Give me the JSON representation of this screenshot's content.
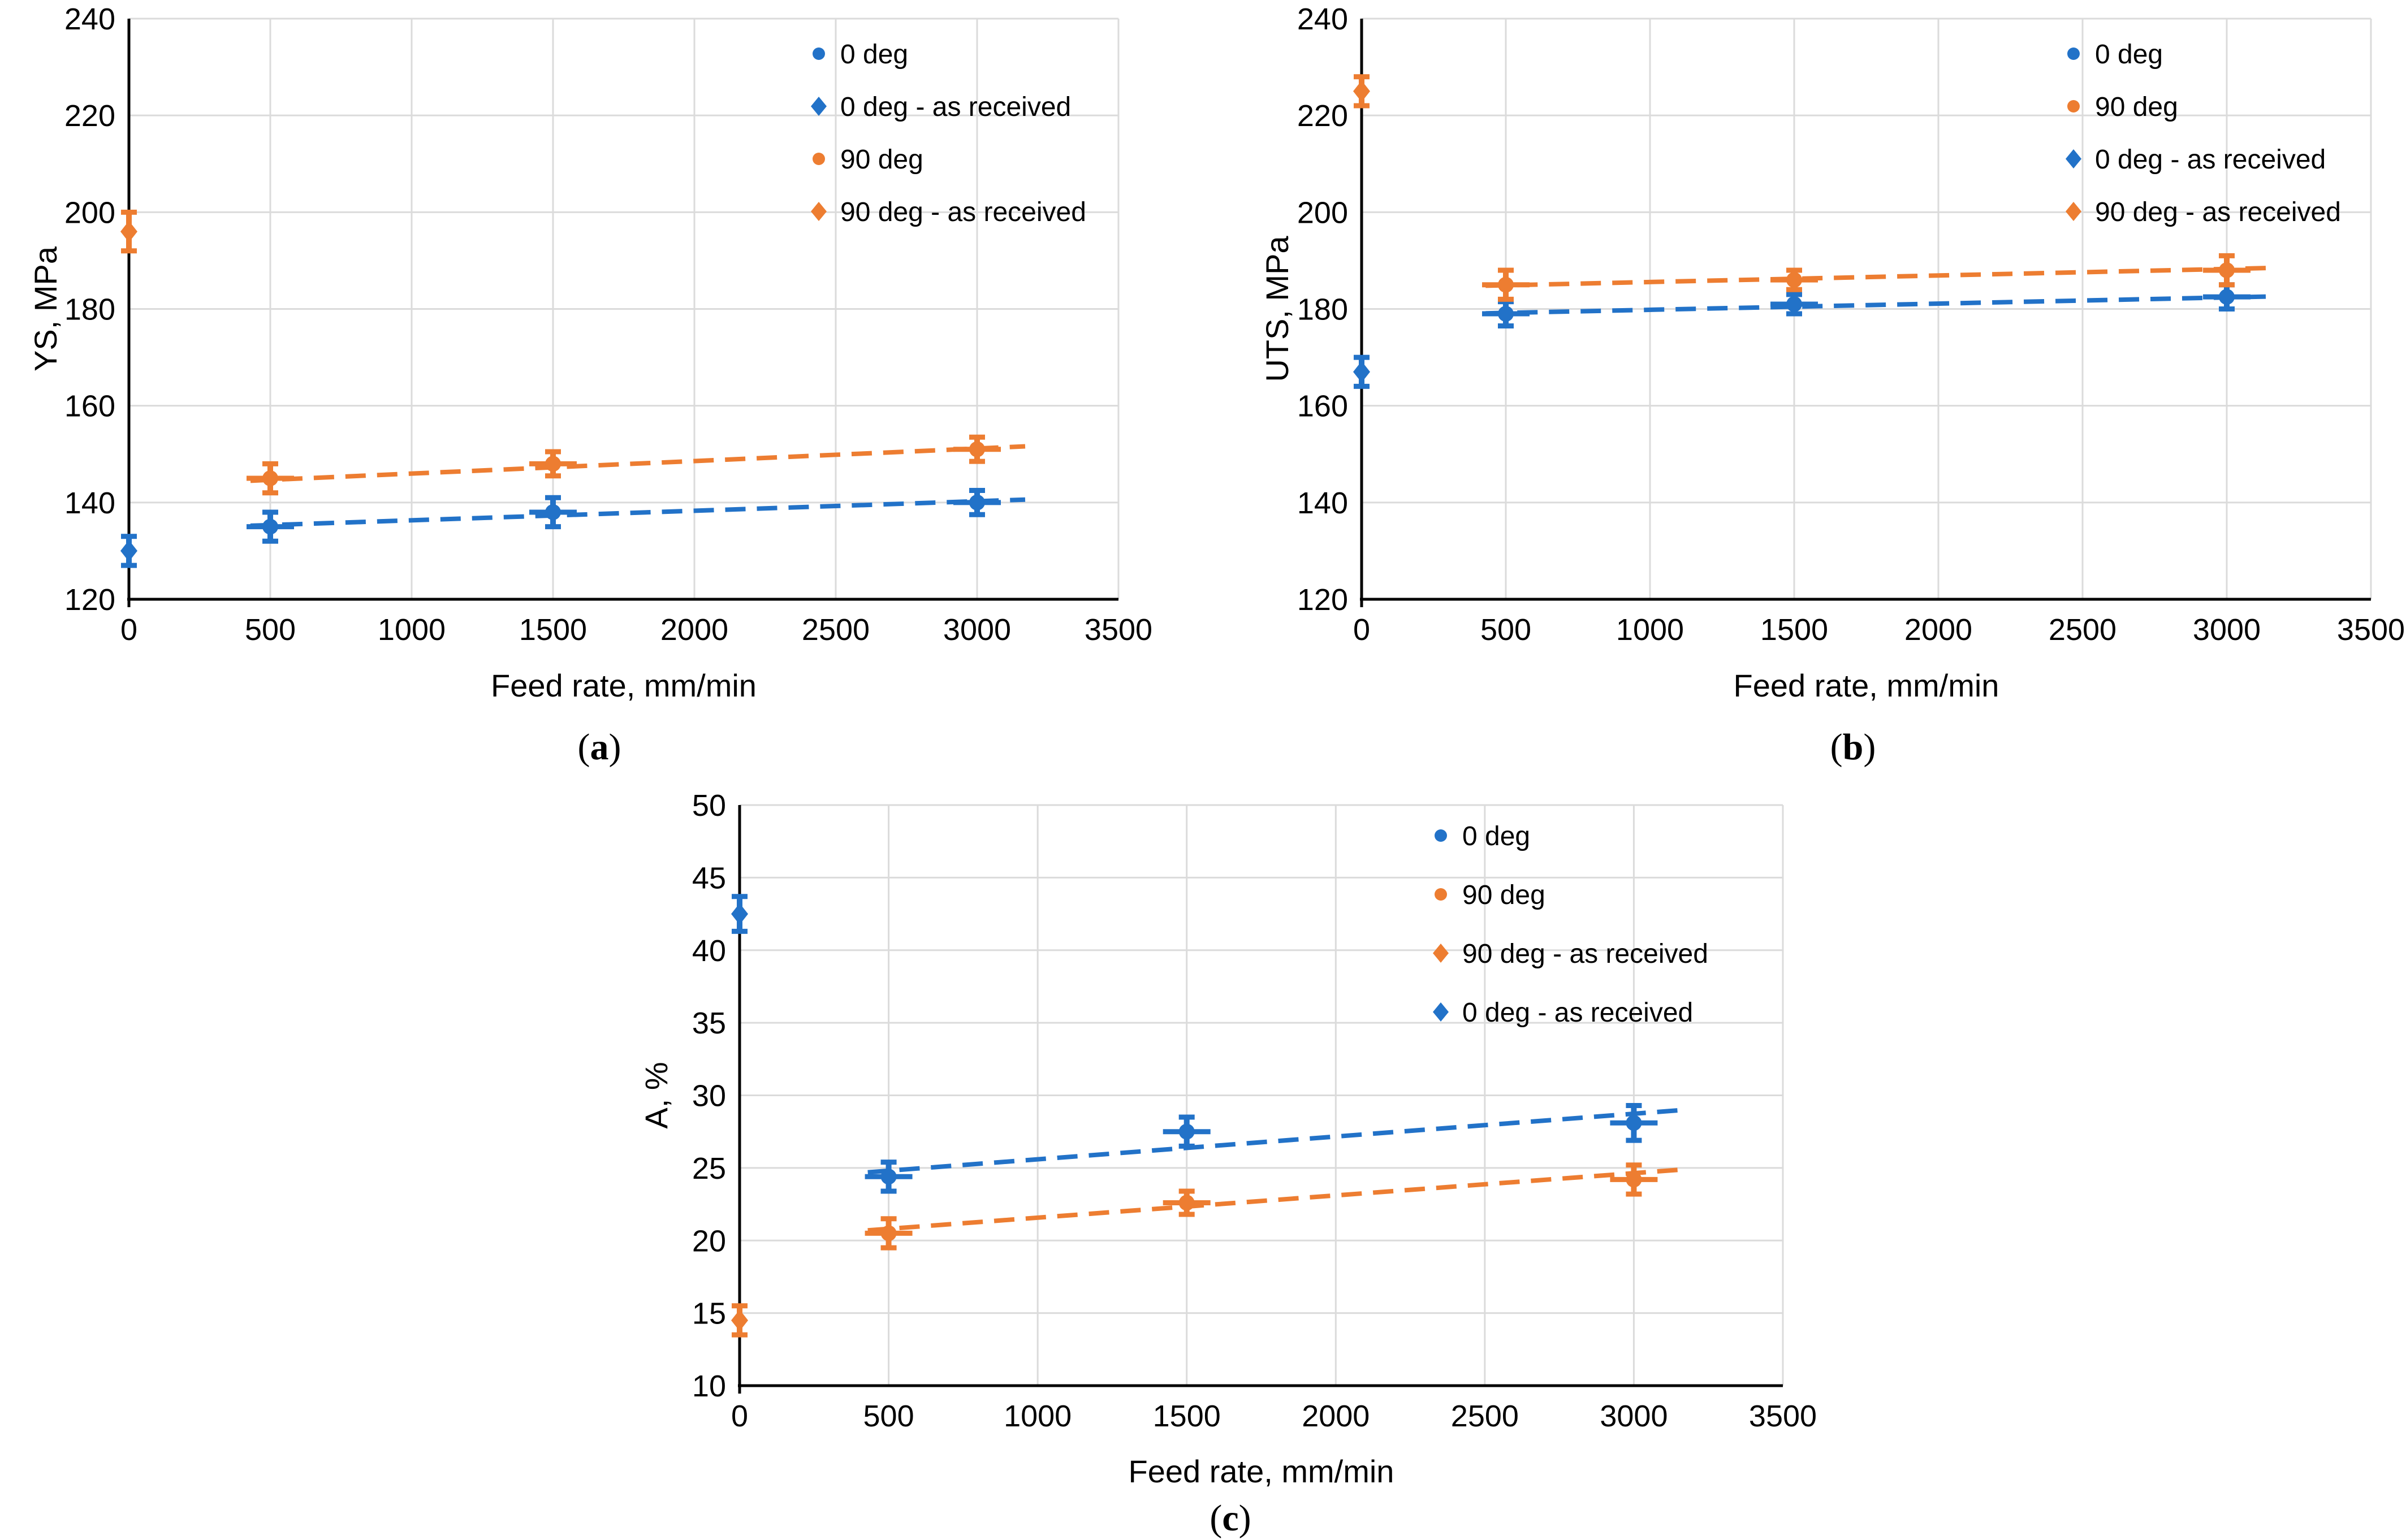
{
  "figure": {
    "background": "#ffffff",
    "captions": {
      "a": {
        "open": "(",
        "letter": "a",
        "close": ")"
      },
      "b": {
        "open": "(",
        "letter": "b",
        "close": ")"
      },
      "c": {
        "open": "(",
        "letter": "c",
        "close": ")"
      }
    }
  },
  "colors": {
    "blue": "#2272C8",
    "orange": "#ED7D31",
    "gridline": "#DBDBDB",
    "axis": "#000000",
    "text": "#000000"
  },
  "chart_data": [
    {
      "id": "a",
      "type": "scatter",
      "title": "",
      "xlabel": "Feed rate,  mm/min",
      "ylabel": "YS,  MPa",
      "xlim": [
        0,
        3500
      ],
      "ylim": [
        120,
        240
      ],
      "xticks": [
        0,
        500,
        1000,
        1500,
        2000,
        2500,
        3000,
        3500
      ],
      "yticks": [
        120,
        140,
        160,
        180,
        200,
        220,
        240
      ],
      "grid": true,
      "legend_position": "top-right-inside",
      "series": [
        {
          "name": "0 deg",
          "color": "blue",
          "marker": "circle",
          "points": [
            {
              "x": 500,
              "y": 135,
              "err": 3
            },
            {
              "x": 1500,
              "y": 138,
              "err": 3
            },
            {
              "x": 3000,
              "y": 140,
              "err": 2.5
            }
          ]
        },
        {
          "name": "0 deg - as received",
          "color": "blue",
          "marker": "diamond",
          "points": [
            {
              "x": 0,
              "y": 130,
              "err": 3
            }
          ]
        },
        {
          "name": "90 deg",
          "color": "orange",
          "marker": "circle",
          "points": [
            {
              "x": 500,
              "y": 145,
              "err": 3
            },
            {
              "x": 1500,
              "y": 148,
              "err": 2.5
            },
            {
              "x": 3000,
              "y": 151,
              "err": 2.5
            }
          ]
        },
        {
          "name": "90 deg - as received",
          "color": "orange",
          "marker": "diamond",
          "points": [
            {
              "x": 0,
              "y": 196,
              "err": 4
            }
          ]
        }
      ],
      "trendlines": [
        {
          "series": "0 deg",
          "color": "blue",
          "x1": 430,
          "y1": 135.2,
          "x2": 3170,
          "y2": 140.6
        },
        {
          "series": "90 deg",
          "color": "orange",
          "x1": 430,
          "y1": 144.5,
          "x2": 3170,
          "y2": 151.6
        }
      ],
      "legend": [
        {
          "label": "0 deg",
          "marker": "circle",
          "color": "blue"
        },
        {
          "label": "0 deg - as received",
          "marker": "diamond",
          "color": "blue"
        },
        {
          "label": "90 deg",
          "marker": "circle",
          "color": "orange"
        },
        {
          "label": "90 deg - as received",
          "marker": "diamond",
          "color": "orange"
        }
      ]
    },
    {
      "id": "b",
      "type": "scatter",
      "title": "",
      "xlabel": "Feed rate,  mm/min",
      "ylabel": "UTS, MPa",
      "xlim": [
        0,
        3500
      ],
      "ylim": [
        120,
        240
      ],
      "xticks": [
        0,
        500,
        1000,
        1500,
        2000,
        2500,
        3000,
        3500
      ],
      "yticks": [
        120,
        140,
        160,
        180,
        200,
        220,
        240
      ],
      "grid": true,
      "legend_position": "top-right-inside",
      "series": [
        {
          "name": "0 deg",
          "color": "blue",
          "marker": "circle",
          "points": [
            {
              "x": 500,
              "y": 179,
              "err": 2.5
            },
            {
              "x": 1500,
              "y": 181,
              "err": 2
            },
            {
              "x": 3000,
              "y": 182.5,
              "err": 2.5
            }
          ]
        },
        {
          "name": "90 deg",
          "color": "orange",
          "marker": "circle",
          "points": [
            {
              "x": 500,
              "y": 185,
              "err": 3
            },
            {
              "x": 1500,
              "y": 186,
              "err": 2
            },
            {
              "x": 3000,
              "y": 188,
              "err": 3
            }
          ]
        },
        {
          "name": "0 deg - as received",
          "color": "blue",
          "marker": "diamond",
          "points": [
            {
              "x": 0,
              "y": 167,
              "err": 3
            }
          ]
        },
        {
          "name": "90 deg - as received",
          "color": "orange",
          "marker": "diamond",
          "points": [
            {
              "x": 0,
              "y": 225,
              "err": 3
            }
          ]
        }
      ],
      "trendlines": [
        {
          "series": "0 deg",
          "color": "blue",
          "x1": 430,
          "y1": 179.1,
          "x2": 3170,
          "y2": 182.6
        },
        {
          "series": "90 deg",
          "color": "orange",
          "x1": 430,
          "y1": 184.8,
          "x2": 3170,
          "y2": 188.5
        }
      ],
      "legend": [
        {
          "label": "0 deg",
          "marker": "circle",
          "color": "blue"
        },
        {
          "label": "90 deg",
          "marker": "circle",
          "color": "orange"
        },
        {
          "label": "0 deg - as received",
          "marker": "diamond",
          "color": "blue"
        },
        {
          "label": "90 deg - as received",
          "marker": "diamond",
          "color": "orange"
        }
      ]
    },
    {
      "id": "c",
      "type": "scatter",
      "title": "",
      "xlabel": "Feed rate,  mm/min",
      "ylabel": "A, %",
      "xlim": [
        0,
        3500
      ],
      "ylim": [
        10,
        50
      ],
      "xticks": [
        0,
        500,
        1000,
        1500,
        2000,
        2500,
        3000,
        3500
      ],
      "yticks": [
        10,
        15,
        20,
        25,
        30,
        35,
        40,
        45,
        50
      ],
      "grid": true,
      "legend_position": "top-right-inside",
      "series": [
        {
          "name": "0 deg",
          "color": "blue",
          "marker": "circle",
          "points": [
            {
              "x": 500,
              "y": 24.4,
              "err": 1
            },
            {
              "x": 1500,
              "y": 27.5,
              "err": 1
            },
            {
              "x": 3000,
              "y": 28.1,
              "err": 1.2
            }
          ]
        },
        {
          "name": "90 deg",
          "color": "orange",
          "marker": "circle",
          "points": [
            {
              "x": 500,
              "y": 20.5,
              "err": 1
            },
            {
              "x": 1500,
              "y": 22.6,
              "err": 0.8
            },
            {
              "x": 3000,
              "y": 24.2,
              "err": 1
            }
          ]
        },
        {
          "name": "90 deg - as received",
          "color": "orange",
          "marker": "diamond",
          "points": [
            {
              "x": 0,
              "y": 14.5,
              "err": 1
            }
          ]
        },
        {
          "name": "0 deg - as received",
          "color": "blue",
          "marker": "diamond",
          "points": [
            {
              "x": 0,
              "y": 42.5,
              "err": 1.2
            }
          ]
        }
      ],
      "trendlines": [
        {
          "series": "0 deg",
          "color": "blue",
          "x1": 430,
          "y1": 24.7,
          "x2": 3170,
          "y2": 29.0
        },
        {
          "series": "90 deg",
          "color": "orange",
          "x1": 430,
          "y1": 20.7,
          "x2": 3170,
          "y2": 24.9
        }
      ],
      "legend": [
        {
          "label": "0 deg",
          "marker": "circle",
          "color": "blue"
        },
        {
          "label": "90 deg",
          "marker": "circle",
          "color": "orange"
        },
        {
          "label": "90 deg - as received",
          "marker": "diamond",
          "color": "orange"
        },
        {
          "label": "0 deg - as received",
          "marker": "diamond",
          "color": "blue"
        }
      ]
    }
  ]
}
